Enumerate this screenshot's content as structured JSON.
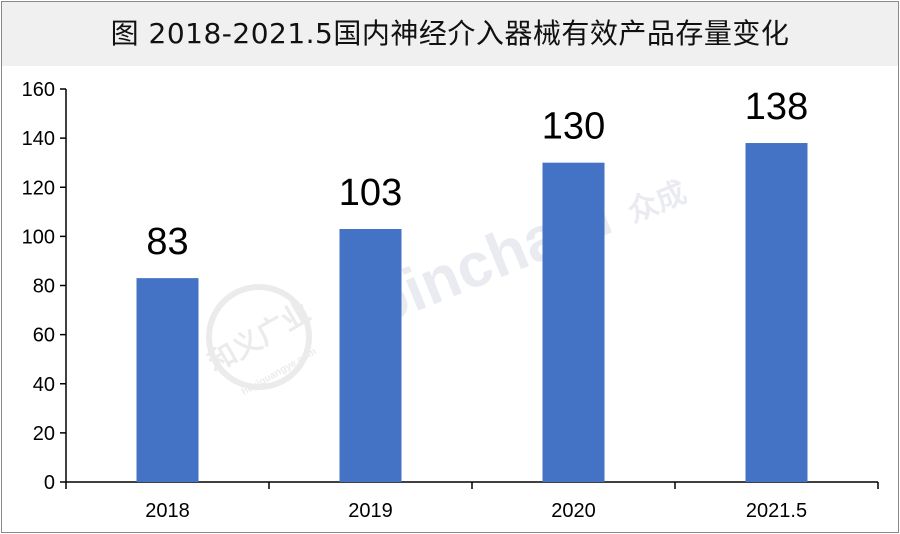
{
  "title": "图  2018-2021.5国内神经介入器械有效产品存量变化",
  "watermark": {
    "brand": "Joinchain",
    "brand_cn": "众成",
    "seal_cn": "和义广业",
    "seal_site": "heyiguangye.com"
  },
  "colors": {
    "bar": "#4472c4",
    "axis": "#000000",
    "title_bg": "#f0f0f0",
    "border": "#8a8a8a"
  },
  "chart_data": {
    "type": "bar",
    "title": "图  2018-2021.5国内神经介入器械有效产品存量变化",
    "categories": [
      "2018",
      "2019",
      "2020",
      "2021.5"
    ],
    "values": [
      83,
      103,
      130,
      138
    ],
    "data_labels": [
      "83",
      "103",
      "130",
      "138"
    ],
    "y_ticks": [
      0,
      20,
      40,
      60,
      80,
      100,
      120,
      140,
      160
    ],
    "ylim": [
      0,
      160
    ],
    "xlabel": "",
    "ylabel": "",
    "grid": false,
    "legend": "none"
  }
}
